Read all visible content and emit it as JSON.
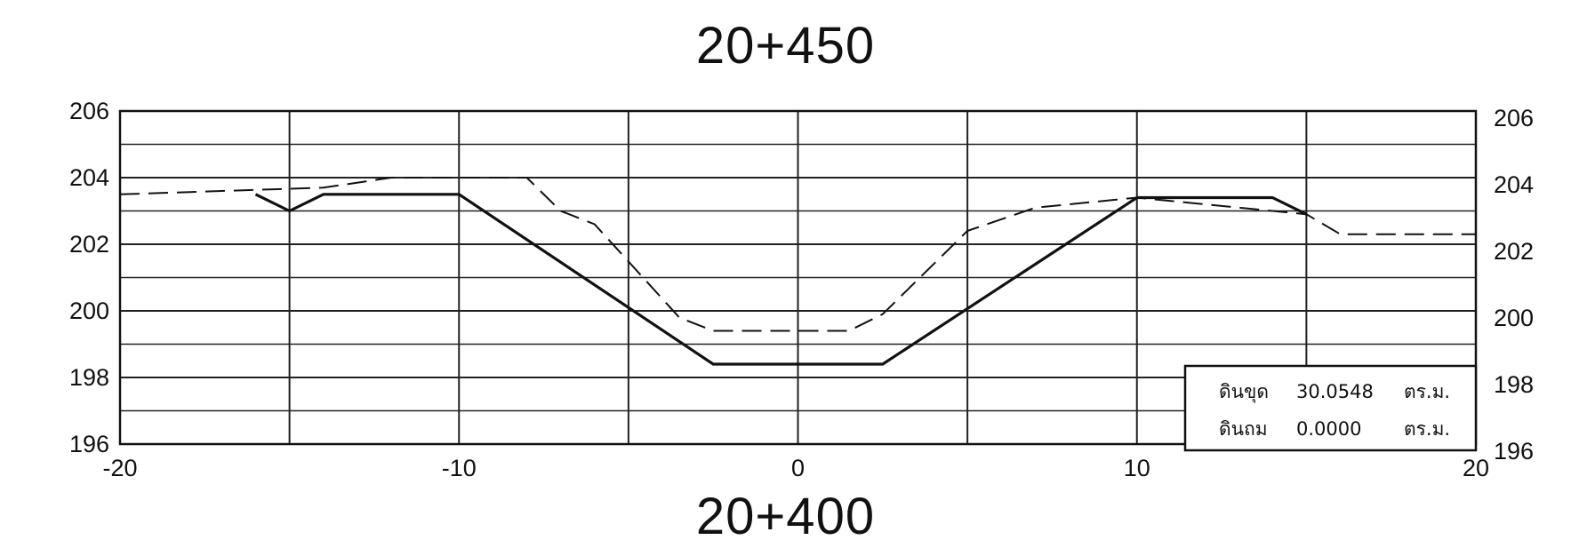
{
  "chart_data": {
    "type": "line",
    "title": "20+450",
    "subtitle": "20+400",
    "xlim": [
      -20,
      20
    ],
    "ylim": [
      196,
      206
    ],
    "right_ylim": [
      196,
      206
    ],
    "x_ticks": [
      -20,
      -10,
      0,
      10,
      20
    ],
    "x_tick_labels": [
      "-20",
      "-10",
      "0",
      "10",
      "20"
    ],
    "y_ticks": [
      196,
      198,
      200,
      202,
      204,
      206
    ],
    "y_tick_labels": [
      "196",
      "198",
      "200",
      "202",
      "204",
      "206"
    ],
    "right_y_tick_labels": [
      "196",
      "198",
      "200",
      "202",
      "204",
      "206"
    ],
    "grid": true,
    "series": [
      {
        "style": "solid-thick",
        "x": [
          -16,
          -15,
          -14,
          -10,
          -2.5,
          2.5,
          10,
          14,
          15
        ],
        "y": [
          203.5,
          203,
          203.5,
          203.5,
          198.4,
          198.4,
          203.4,
          203.4,
          202.9
        ]
      },
      {
        "style": "dashed",
        "x": [
          -20,
          -14,
          -12,
          -8,
          -7,
          -6,
          -3.5,
          -2.5,
          1.5,
          2.5,
          5,
          7,
          10,
          15,
          16,
          20
        ],
        "y": [
          203.5,
          203.7,
          204,
          204,
          203,
          202.6,
          199.8,
          199.4,
          199.4,
          199.9,
          202.4,
          203.1,
          203.4,
          202.9,
          202.3,
          202.3
        ]
      }
    ],
    "legend": {
      "placement": "bottom-right",
      "rows": [
        {
          "label": "ดินขุด",
          "value": "30.0548",
          "unit": "ตร.ม."
        },
        {
          "label": "ดินถม",
          "value": "0.0000",
          "unit": "ตร.ม."
        }
      ]
    }
  }
}
